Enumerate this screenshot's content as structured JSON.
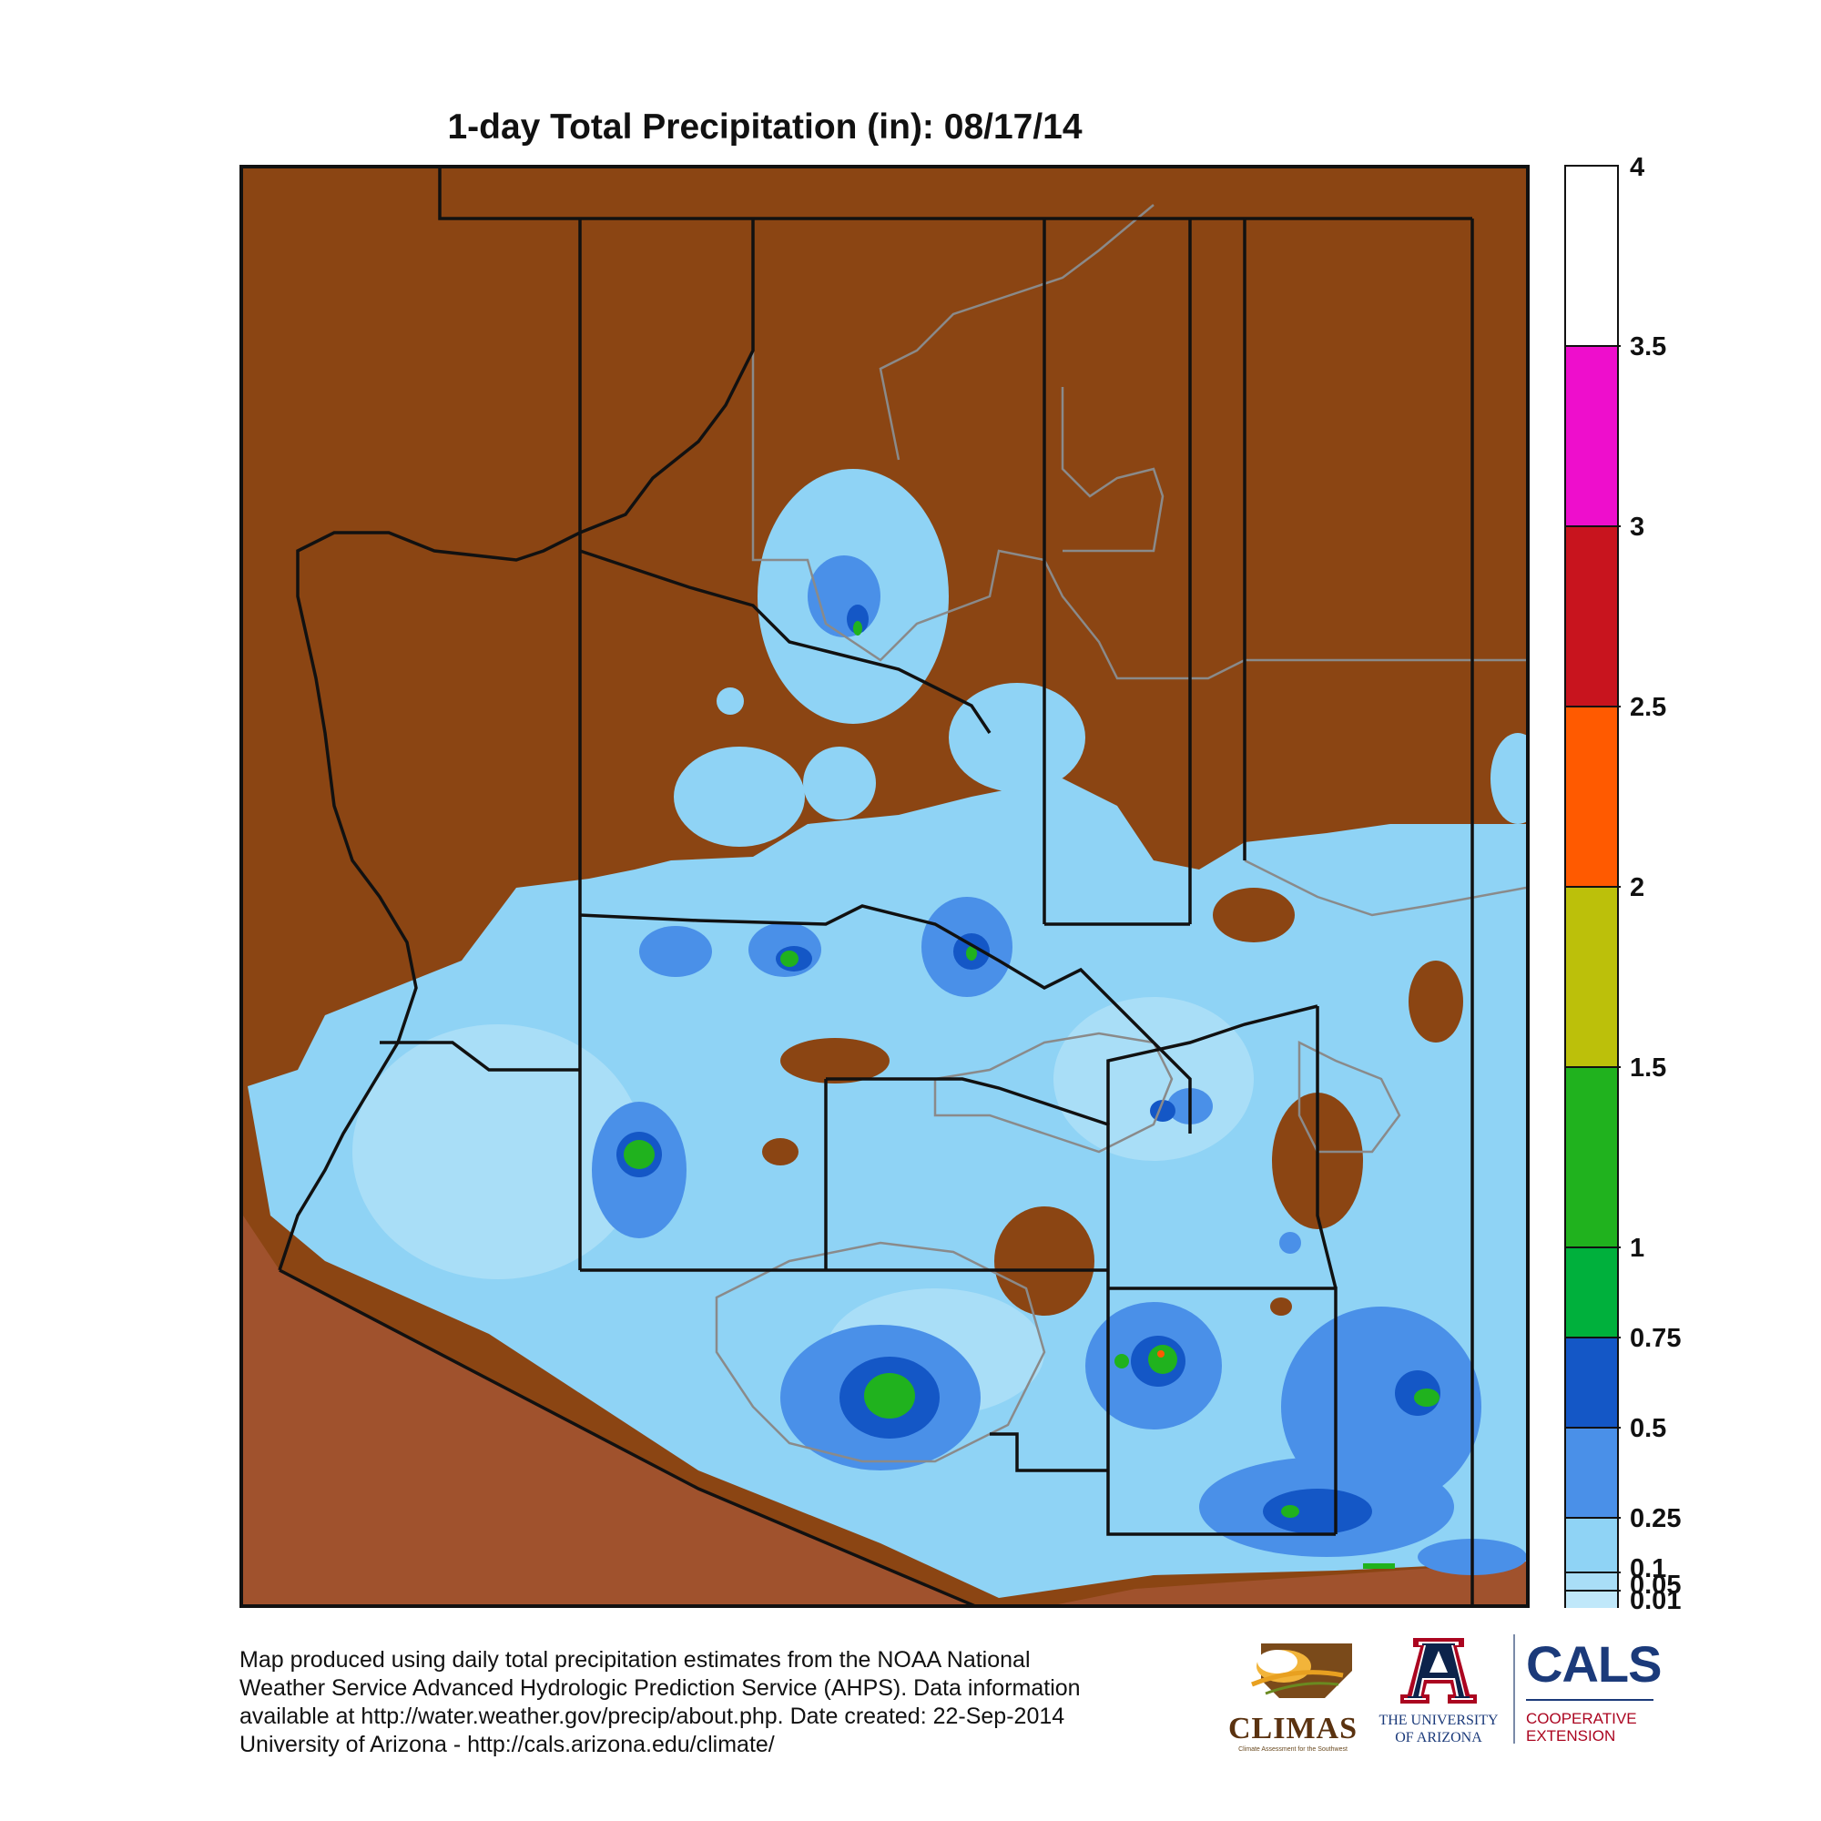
{
  "title": "1-day Total Precipitation (in): 08/17/14",
  "legend": {
    "labels": [
      "4",
      "3.5",
      "3",
      "2.5",
      "2",
      "1.5",
      "1",
      "0.75",
      "0.5",
      "0.25",
      "0.1",
      "0.05",
      "0.01"
    ],
    "bands": [
      {
        "from": 3.5,
        "to": 4,
        "color": "#ffffff"
      },
      {
        "from": 3,
        "to": 3.5,
        "color": "#ee0ecc"
      },
      {
        "from": 2.5,
        "to": 3,
        "color": "#c8141e"
      },
      {
        "from": 2,
        "to": 2.5,
        "color": "#ff5a00"
      },
      {
        "from": 1.5,
        "to": 2,
        "color": "#bcc00a"
      },
      {
        "from": 1,
        "to": 1.5,
        "color": "#20b21e"
      },
      {
        "from": 0.75,
        "to": 1,
        "color": "#00b03c"
      },
      {
        "from": 0.5,
        "to": 0.75,
        "color": "#1457c6"
      },
      {
        "from": 0.25,
        "to": 0.5,
        "color": "#4a90e8"
      },
      {
        "from": 0.1,
        "to": 0.25,
        "color": "#8fd3f5"
      },
      {
        "from": 0.05,
        "to": 0.1,
        "color": "#a9def7"
      },
      {
        "from": 0.01,
        "to": 0.05,
        "color": "#c0e8fa"
      }
    ]
  },
  "map_colors": {
    "no_precip_land": "#8B4513",
    "outside_state": "#a0522d",
    "county_lines": "#111111",
    "reservation_lines": "#8a8a8a"
  },
  "footer": {
    "line1": "Map produced using daily total precipitation estimates from the NOAA National",
    "line2": "Weather Service Advanced Hydrologic Prediction Service (AHPS). Data information",
    "line3": "available at http://water.weather.gov/precip/about.php. Date created: 22-Sep-2014",
    "line4": "University of Arizona - http://cals.arizona.edu/climate/"
  },
  "logos": {
    "climas": {
      "name": "CLIMAS",
      "tagline": "Climate Assessment for the Southwest"
    },
    "ua": {
      "line1": "THE UNIVERSITY",
      "line2": "OF ARIZONA"
    },
    "cals": {
      "name": "CALS",
      "line1": "COOPERATIVE",
      "line2": "EXTENSION"
    }
  }
}
